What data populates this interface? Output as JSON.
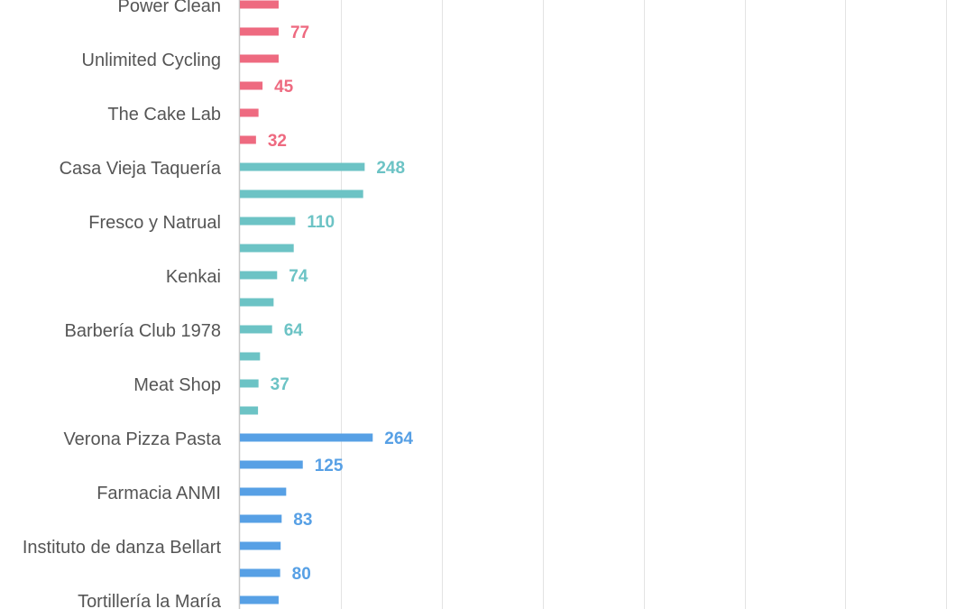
{
  "colors": {
    "pink": "#ee6a80",
    "teal": "#6cc3c5",
    "blue": "#57a0e5",
    "grid": "#e3e3e3",
    "label": "#555555"
  },
  "chart_data": {
    "type": "bar",
    "orientation": "horizontal",
    "title": "",
    "xlabel": "",
    "ylabel": "",
    "grid": true,
    "legend": "none",
    "xlim": [
      0,
      350
    ],
    "categories": [
      "Power Clean",
      "Unlimited Cycling",
      "The Cake Lab",
      "Casa Vieja Taquería",
      "Fresco y Natrual",
      "Kenkai",
      "Barbería Club 1978",
      "Meat Shop",
      "Verona Pizza Pasta",
      "Farmacia ANMI",
      "Instituto de danza Bellart",
      "Tortillería la María"
    ],
    "bars": [
      {
        "value": 77,
        "color": "pink",
        "label": ""
      },
      {
        "value": 77,
        "color": "pink",
        "label": "77"
      },
      {
        "value": 77,
        "color": "pink",
        "label": ""
      },
      {
        "value": 45,
        "color": "pink",
        "label": "45"
      },
      {
        "value": 37,
        "color": "pink",
        "label": ""
      },
      {
        "value": 32,
        "color": "pink",
        "label": "32"
      },
      {
        "value": 248,
        "color": "teal",
        "label": "248"
      },
      {
        "value": 245,
        "color": "teal",
        "label": ""
      },
      {
        "value": 110,
        "color": "teal",
        "label": "110"
      },
      {
        "value": 107,
        "color": "teal",
        "label": ""
      },
      {
        "value": 74,
        "color": "teal",
        "label": "74"
      },
      {
        "value": 67,
        "color": "teal",
        "label": ""
      },
      {
        "value": 64,
        "color": "teal",
        "label": "64"
      },
      {
        "value": 40,
        "color": "teal",
        "label": ""
      },
      {
        "value": 37,
        "color": "teal",
        "label": "37"
      },
      {
        "value": 36,
        "color": "teal",
        "label": ""
      },
      {
        "value": 264,
        "color": "blue",
        "label": "264"
      },
      {
        "value": 125,
        "color": "blue",
        "label": "125"
      },
      {
        "value": 92,
        "color": "blue",
        "label": ""
      },
      {
        "value": 83,
        "color": "blue",
        "label": "83"
      },
      {
        "value": 81,
        "color": "blue",
        "label": ""
      },
      {
        "value": 80,
        "color": "blue",
        "label": "80"
      },
      {
        "value": 77,
        "color": "blue",
        "label": ""
      }
    ]
  }
}
